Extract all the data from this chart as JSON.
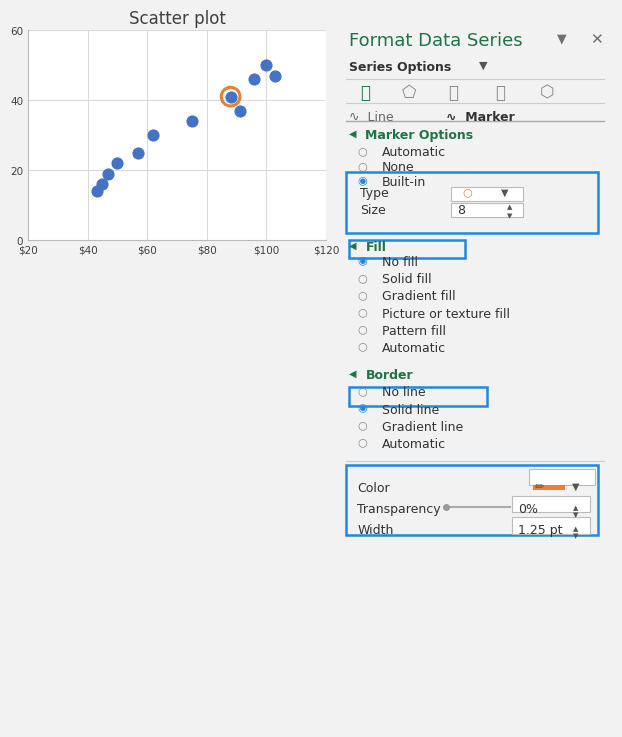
{
  "title": "Scatter plot",
  "scatter_x": [
    43,
    45,
    47,
    50,
    57,
    62,
    75,
    88,
    91,
    96,
    100,
    103
  ],
  "scatter_y": [
    14,
    16,
    19,
    22,
    25,
    30,
    34,
    41,
    37,
    46,
    50,
    47
  ],
  "highlight_x": 88,
  "highlight_y": 41,
  "dot_color": "#4472C4",
  "highlight_color": "#ED7D31",
  "xlim": [
    20,
    120
  ],
  "ylim": [
    0,
    60
  ],
  "xticks": [
    20,
    40,
    60,
    80,
    100,
    120
  ],
  "yticks": [
    0,
    20,
    40,
    60
  ],
  "panel_title_color": "#404040",
  "right_panel_title": "Format Data Series",
  "right_panel_title_color": "#217346",
  "blue_border_color": "#1E88E5",
  "green_label_color": "#217346",
  "radio_options_marker": [
    "Automatic",
    "None",
    "Built-in"
  ],
  "radio_options_fill": [
    "No fill",
    "Solid fill",
    "Gradient fill",
    "Picture or texture fill",
    "Pattern fill",
    "Automatic"
  ],
  "radio_options_border": [
    "No line",
    "Solid line",
    "Gradient line",
    "Automatic"
  ],
  "selected_marker": "Built-in",
  "selected_fill": "No fill",
  "selected_border": "Solid line",
  "type_label": "Type",
  "size_label": "Size",
  "size_value": "8",
  "color_label": "Color",
  "transparency_label": "Transparency",
  "transparency_value": "0%",
  "width_label": "Width",
  "width_value": "1.25 pt",
  "orange_color": "#ED7D31",
  "dot_size": 60,
  "highlight_ring_size": 180
}
